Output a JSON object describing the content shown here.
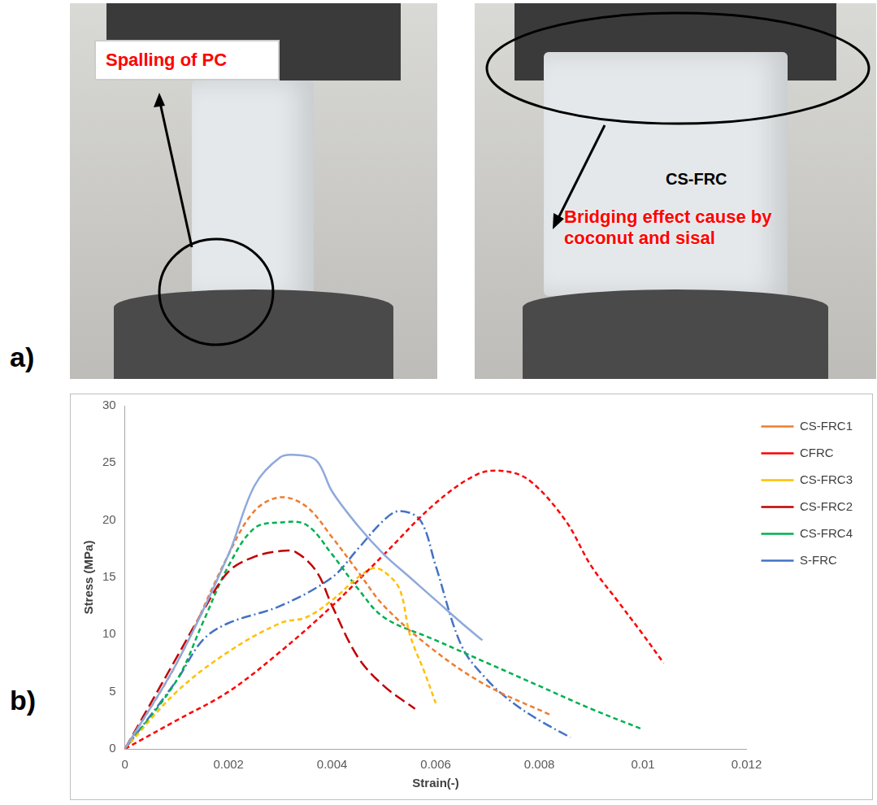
{
  "panel_labels": [
    "a)",
    "b)"
  ],
  "photos": [
    {
      "annotations": [
        "Spalling of PC"
      ]
    },
    {
      "annotations": [
        "CS-FRC",
        "Bridging effect cause by coconut and sisal"
      ]
    }
  ],
  "chart_data": {
    "type": "line",
    "x_label": "Strain(-)",
    "y_label": "Stress (MPa)",
    "xlim": [
      0,
      0.012
    ],
    "xticks": [
      0,
      0.002,
      0.004,
      0.006,
      0.008,
      0.01,
      0.012
    ],
    "ylim": [
      0,
      30
    ],
    "yticks": [
      0,
      5,
      10,
      15,
      20,
      25,
      30
    ],
    "grid": false,
    "legend": "right",
    "series": [
      {
        "color": "#8EA9DB",
        "line_style": "solid",
        "x": [
          0,
          0.001,
          0.002,
          0.0025,
          0.003,
          0.0033,
          0.0037,
          0.004,
          0.0045,
          0.005,
          0.0055,
          0.006,
          0.0065,
          0.0069
        ],
        "values": [
          0,
          7.5,
          17,
          23,
          25.5,
          25.7,
          25.2,
          22.5,
          19.5,
          17,
          15,
          13,
          11,
          9.5
        ]
      },
      {
        "name": "CS-FRC1",
        "color": "#ED7D31",
        "line_style": "dashed",
        "x": [
          0,
          0.001,
          0.002,
          0.0025,
          0.003,
          0.0035,
          0.004,
          0.0045,
          0.005,
          0.006,
          0.007,
          0.0082
        ],
        "values": [
          0,
          7.5,
          17,
          20.8,
          22,
          21.2,
          18.5,
          15.5,
          12.5,
          8.5,
          5.5,
          3
        ]
      },
      {
        "name": "CFRC",
        "color": "#FF0000",
        "line_style": "dashed",
        "x": [
          0,
          0.001,
          0.002,
          0.003,
          0.004,
          0.005,
          0.006,
          0.0068,
          0.0073,
          0.0078,
          0.0085,
          0.009,
          0.0095,
          0.01,
          0.0104
        ],
        "values": [
          0,
          2.5,
          5,
          8.5,
          12.5,
          17,
          21.5,
          24,
          24.3,
          23.5,
          20,
          16,
          13,
          10,
          7.5
        ]
      },
      {
        "name": "CS-FRC3",
        "color": "#FFC000",
        "line_style": "dashed",
        "x": [
          0,
          0.001,
          0.002,
          0.003,
          0.0035,
          0.004,
          0.0045,
          0.0048,
          0.005,
          0.0053,
          0.0055,
          0.0058,
          0.006
        ],
        "values": [
          0,
          5,
          8.5,
          11,
          11.5,
          13,
          15,
          15.8,
          15.5,
          14,
          10,
          6.5,
          4
        ]
      },
      {
        "name": "CS-FRC2",
        "color": "#C00000",
        "line_style": "long_dash",
        "x": [
          0,
          0.001,
          0.0015,
          0.002,
          0.0025,
          0.003,
          0.0033,
          0.0037,
          0.004,
          0.0045,
          0.005,
          0.0056
        ],
        "values": [
          0,
          8,
          12,
          15.5,
          16.8,
          17.3,
          17.2,
          15.5,
          12.5,
          8,
          5.5,
          3.5
        ]
      },
      {
        "name": "CS-FRC4",
        "color": "#00B050",
        "line_style": "dashed",
        "x": [
          0,
          0.001,
          0.0015,
          0.002,
          0.0025,
          0.003,
          0.0035,
          0.004,
          0.0045,
          0.005,
          0.006,
          0.007,
          0.008,
          0.009,
          0.01
        ],
        "values": [
          0,
          6,
          11,
          16,
          19.3,
          19.8,
          19.6,
          17,
          14,
          11.5,
          9.5,
          7.5,
          5.5,
          3.5,
          1.7
        ]
      },
      {
        "name": "S-FRC",
        "color": "#4472C4",
        "line_style": "dash_dot",
        "x": [
          0,
          0.001,
          0.0015,
          0.002,
          0.003,
          0.004,
          0.0045,
          0.005,
          0.0053,
          0.0057,
          0.006,
          0.0065,
          0.007,
          0.0075,
          0.008,
          0.0086
        ],
        "values": [
          0,
          6,
          9.5,
          11,
          12.5,
          15,
          17.5,
          20,
          20.8,
          20,
          16,
          9,
          6,
          4,
          2.5,
          1
        ]
      }
    ]
  }
}
